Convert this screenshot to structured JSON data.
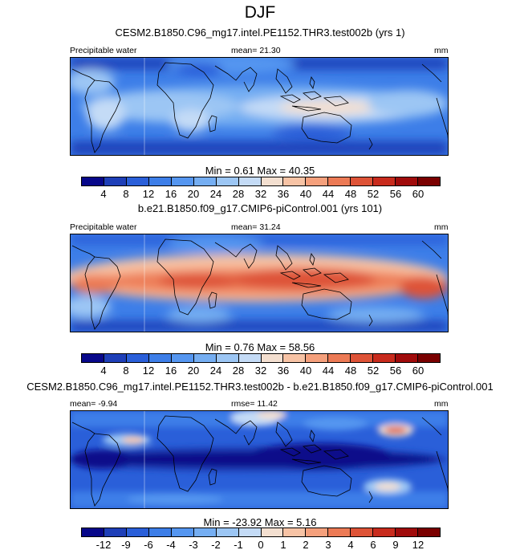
{
  "title": "DJF",
  "colors": {
    "seq": [
      "#08088a",
      "#1e3fb8",
      "#2a5fd9",
      "#3d7ee8",
      "#5596f0",
      "#75aef2",
      "#9cc6f4",
      "#c4dbf6",
      "#f3dfd0",
      "#f7c3a5",
      "#f5a07c",
      "#ec7a55",
      "#de5337",
      "#c82b1d",
      "#a00b0b",
      "#7a0000"
    ],
    "div": [
      "#08088a",
      "#1e3fb8",
      "#2a5fd9",
      "#3d7ee8",
      "#5596f0",
      "#75aef2",
      "#9cc6f4",
      "#c4dbf6",
      "#f3dfd0",
      "#f7c3a5",
      "#f5a07c",
      "#ec7a55",
      "#de5337",
      "#c82b1d",
      "#a00b0b",
      "#7a0000"
    ]
  },
  "panels": [
    {
      "subtitle": "CESM2.B1850.C96_mg17.intel.PE1152.THR3.test002b (yrs 1)",
      "left_label": "Precipitable water",
      "center_label": "mean=  21.30",
      "right_label": "mm",
      "minmax": "Min =   0.61 Max =  40.35",
      "ticks": [
        "4",
        "8",
        "12",
        "16",
        "20",
        "24",
        "28",
        "32",
        "36",
        "40",
        "44",
        "48",
        "52",
        "56",
        "60"
      ]
    },
    {
      "subtitle": "b.e21.B1850.f09_g17.CMIP6-piControl.001 (yrs 101)",
      "left_label": "Precipitable water",
      "center_label": "mean=  31.24",
      "right_label": "mm",
      "minmax": "Min =   0.76 Max =  58.56",
      "ticks": [
        "4",
        "8",
        "12",
        "16",
        "20",
        "24",
        "28",
        "32",
        "36",
        "40",
        "44",
        "48",
        "52",
        "56",
        "60"
      ]
    },
    {
      "subtitle": "CESM2.B1850.C96_mg17.intel.PE1152.THR3.test002b - b.e21.B1850.f09_g17.CMIP6-piControl.001",
      "left_label": "mean=  -9.94",
      "center_label": "rmse=  11.42",
      "right_label": "mm",
      "minmax": "Min = -23.92 Max =   5.16",
      "ticks": [
        "-12",
        "-9",
        "-6",
        "-4",
        "-3",
        "-2",
        "-1",
        "0",
        "1",
        "2",
        "3",
        "4",
        "6",
        "9",
        "12"
      ]
    }
  ]
}
